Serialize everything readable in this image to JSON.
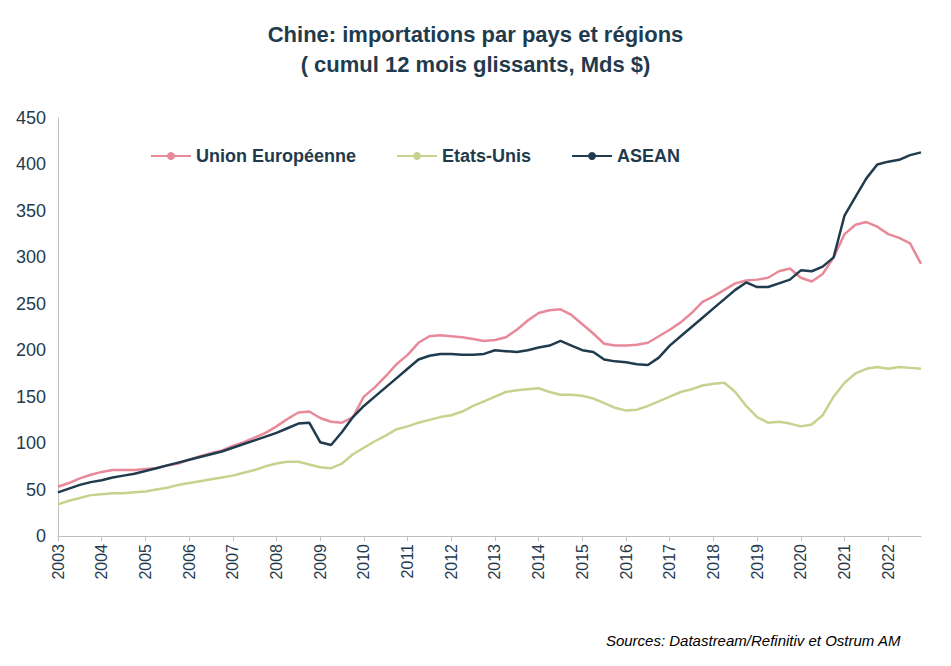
{
  "chart_data": {
    "type": "line",
    "title": "Chine: importations par pays et régions",
    "subtitle": "( cumul 12 mois glissants, Mds $)",
    "source": "Sources: Datastream/Refinitiv et Ostrum AM",
    "categories": [
      "2003",
      null,
      null,
      null,
      "2004",
      null,
      null,
      null,
      "2005",
      null,
      null,
      null,
      "2006",
      null,
      null,
      null,
      "2007",
      null,
      null,
      null,
      "2008",
      null,
      null,
      null,
      "2009",
      null,
      null,
      null,
      "2010",
      null,
      null,
      null,
      "2011",
      null,
      null,
      null,
      "2012",
      null,
      null,
      null,
      "2013",
      null,
      null,
      null,
      "2014",
      null,
      null,
      null,
      "2015",
      null,
      null,
      null,
      "2016",
      null,
      null,
      null,
      "2017",
      null,
      null,
      null,
      "2018",
      null,
      null,
      null,
      "2019",
      null,
      null,
      null,
      "2020",
      null,
      null,
      null,
      "2021",
      null,
      null,
      null,
      "2022",
      null,
      null,
      null
    ],
    "series": [
      {
        "name": "Union Européenne",
        "color": "#e8899a",
        "values": [
          53,
          57,
          62,
          66,
          69,
          71,
          71,
          71,
          72,
          73,
          76,
          78,
          82,
          86,
          89,
          92,
          97,
          101,
          106,
          111,
          118,
          126,
          133,
          134,
          127,
          123,
          122,
          128,
          150,
          160,
          172,
          185,
          195,
          208,
          215,
          216,
          215,
          214,
          212,
          210,
          211,
          214,
          222,
          232,
          240,
          243,
          244,
          238,
          228,
          218,
          207,
          205,
          205,
          206,
          208,
          215,
          222,
          230,
          240,
          252,
          258,
          265,
          272,
          275,
          276,
          278,
          285,
          288,
          278,
          274,
          282,
          300,
          325,
          335,
          338,
          333,
          325,
          321,
          315,
          293
        ]
      },
      {
        "name": "Etats-Unis",
        "color": "#c5d38f",
        "values": [
          34,
          38,
          41,
          44,
          45,
          46,
          46,
          47,
          48,
          50,
          52,
          55,
          57,
          59,
          61,
          63,
          65,
          68,
          71,
          75,
          78,
          80,
          80,
          77,
          74,
          73,
          78,
          88,
          95,
          102,
          108,
          115,
          118,
          122,
          125,
          128,
          130,
          134,
          140,
          145,
          150,
          155,
          157,
          158,
          159,
          155,
          152,
          152,
          151,
          148,
          143,
          138,
          135,
          136,
          140,
          145,
          150,
          155,
          158,
          162,
          164,
          165,
          155,
          140,
          128,
          122,
          123,
          121,
          118,
          120,
          130,
          150,
          165,
          175,
          180,
          182,
          180,
          182,
          181,
          180
        ]
      },
      {
        "name": "ASEAN",
        "color": "#1f3b4d",
        "values": [
          47,
          51,
          55,
          58,
          60,
          63,
          65,
          67,
          70,
          73,
          76,
          79,
          82,
          85,
          88,
          91,
          95,
          99,
          103,
          107,
          111,
          116,
          121,
          122,
          101,
          98,
          112,
          128,
          140,
          150,
          160,
          170,
          180,
          190,
          194,
          196,
          196,
          195,
          195,
          196,
          200,
          199,
          198,
          200,
          203,
          205,
          210,
          205,
          200,
          198,
          190,
          188,
          187,
          185,
          184,
          192,
          205,
          215,
          225,
          235,
          245,
          255,
          265,
          273,
          268,
          268,
          272,
          276,
          286,
          285,
          290,
          300,
          345,
          365,
          385,
          400,
          403,
          405,
          410,
          413
        ]
      }
    ],
    "ylim": [
      0,
      450
    ],
    "yticks": [
      0,
      50,
      100,
      150,
      200,
      250,
      300,
      350,
      400,
      450
    ],
    "grid": false,
    "legend": "top"
  }
}
